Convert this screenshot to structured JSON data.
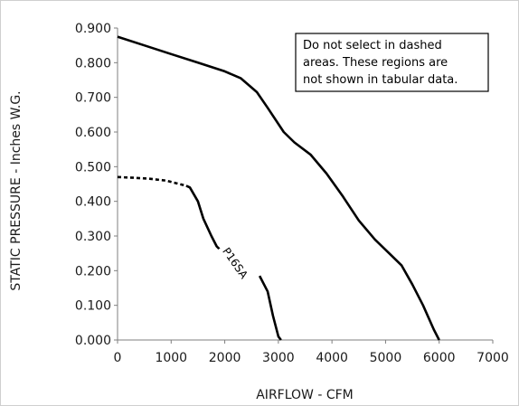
{
  "chart_data": {
    "type": "line",
    "xlabel": "AIRFLOW - CFM",
    "ylabel": "STATIC PRESSURE - Inches W.G.",
    "xlim": [
      0,
      7000
    ],
    "ylim": [
      0,
      0.9
    ],
    "x_ticks": [
      "0",
      "1000",
      "2000",
      "3000",
      "4000",
      "5000",
      "6000",
      "7000"
    ],
    "y_ticks": [
      "0.000",
      "0.100",
      "0.200",
      "0.300",
      "0.400",
      "0.500",
      "0.600",
      "0.700",
      "0.800",
      "0.900"
    ],
    "grid": false,
    "note": {
      "lines": [
        "Do not select in dashed",
        "areas. These regions are",
        "not shown in tabular data."
      ],
      "placement": "top-right"
    },
    "series": [
      {
        "name": "P16SA",
        "style": "solid",
        "color": "#000000",
        "points": [
          [
            1280,
            0.445
          ],
          [
            1350,
            0.44
          ],
          [
            1500,
            0.4
          ],
          [
            1600,
            0.35
          ],
          [
            1750,
            0.3
          ],
          [
            1850,
            0.27
          ],
          [
            1950,
            0.255
          ],
          [
            2100,
            0.24
          ],
          [
            2200,
            0.23
          ]
        ],
        "dashed_points": [
          [
            0,
            0.47
          ],
          [
            300,
            0.468
          ],
          [
            600,
            0.465
          ],
          [
            900,
            0.46
          ],
          [
            1100,
            0.452
          ],
          [
            1280,
            0.445
          ]
        ],
        "points_lower": [
          [
            2650,
            0.185
          ],
          [
            2800,
            0.14
          ],
          [
            2900,
            0.07
          ],
          [
            3000,
            0.01
          ],
          [
            3050,
            0.0
          ]
        ]
      },
      {
        "name": "",
        "style": "solid",
        "color": "#000000",
        "points": [
          [
            0,
            0.875
          ],
          [
            500,
            0.85
          ],
          [
            1000,
            0.825
          ],
          [
            1500,
            0.8
          ],
          [
            2000,
            0.775
          ],
          [
            2300,
            0.755
          ],
          [
            2600,
            0.715
          ],
          [
            2800,
            0.67
          ],
          [
            3100,
            0.6
          ],
          [
            3300,
            0.57
          ],
          [
            3600,
            0.535
          ],
          [
            3900,
            0.48
          ],
          [
            4200,
            0.415
          ],
          [
            4500,
            0.345
          ],
          [
            4800,
            0.29
          ],
          [
            5100,
            0.245
          ],
          [
            5300,
            0.215
          ],
          [
            5500,
            0.16
          ],
          [
            5700,
            0.1
          ],
          [
            5900,
            0.03
          ],
          [
            6000,
            0.0
          ]
        ]
      }
    ],
    "curve_label": "P16SA"
  }
}
